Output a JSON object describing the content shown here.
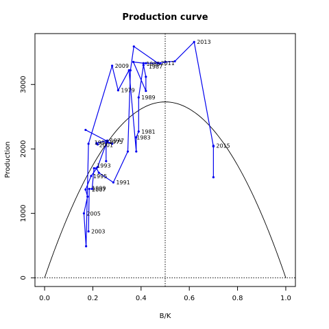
{
  "chart_data": {
    "type": "line",
    "title": "Production curve",
    "xlabel": "B/K",
    "ylabel": "Production",
    "xlim": [
      -0.04,
      1.04
    ],
    "ylim": [
      -135,
      3790
    ],
    "xticks": [
      0.0,
      0.2,
      0.4,
      0.6,
      0.8,
      1.0
    ],
    "xtick_labels": [
      "0.0",
      "0.2",
      "0.4",
      "0.6",
      "0.8",
      "1.0"
    ],
    "yticks": [
      0,
      1000,
      2000,
      3000
    ],
    "ytick_labels": [
      "0",
      "1000",
      "2000",
      "3000"
    ],
    "grid": false,
    "series_color": "#0000ee",
    "curve_color": "#000000",
    "series": [
      {
        "points": [
          [
            0.17,
            2295
          ],
          [
            0.28,
            2080
          ],
          [
            0.257,
            2100
          ],
          [
            0.22,
            1720
          ],
          [
            0.193,
            1580
          ],
          [
            0.17,
            1370
          ],
          [
            0.178,
            1260
          ],
          [
            0.163,
            1000
          ],
          [
            0.172,
            490
          ],
          [
            0.182,
            2080
          ],
          [
            0.28,
            3290
          ],
          [
            0.305,
            2910
          ],
          [
            0.35,
            3220
          ],
          [
            0.38,
            1960
          ],
          [
            0.38,
            2180
          ],
          [
            0.39,
            2270
          ],
          [
            0.39,
            2800
          ],
          [
            0.41,
            3300
          ],
          [
            0.42,
            3120
          ],
          [
            0.42,
            2900
          ],
          [
            0.368,
            3350
          ],
          [
            0.41,
            3330
          ],
          [
            0.42,
            3330
          ],
          [
            0.47,
            3330
          ],
          [
            0.48,
            3330
          ],
          [
            0.5,
            3350
          ],
          [
            0.54,
            3360
          ],
          [
            0.62,
            3660
          ],
          [
            0.7,
            2040
          ],
          [
            0.7,
            2050
          ]
        ]
      },
      {
        "points": [
          [
            0.182,
            720
          ],
          [
            0.185,
            1380
          ],
          [
            0.197,
            1380
          ],
          [
            0.205,
            1700
          ],
          [
            0.215,
            1700
          ],
          [
            0.225,
            1630
          ],
          [
            0.285,
            1480
          ],
          [
            0.345,
            1960
          ],
          [
            0.356,
            3220
          ],
          [
            0.37,
            3590
          ],
          [
            0.47,
            3330
          ]
        ]
      },
      {
        "points": [
          [
            0.255,
            1810
          ],
          [
            0.255,
            2100
          ],
          [
            0.26,
            2130
          ],
          [
            0.215,
            2090
          ],
          [
            0.22,
            2070
          ]
        ]
      },
      {
        "points": [
          [
            0.7,
            1560
          ],
          [
            0.7,
            2040
          ]
        ]
      }
    ],
    "point_labels": [
      {
        "text": "2013",
        "x": 0.62,
        "y": 3660
      },
      {
        "text": "1987",
        "x": 0.42,
        "y": 3280
      },
      {
        "text": "1985",
        "x": 0.41,
        "y": 3320
      },
      {
        "text": "2011",
        "x": 0.47,
        "y": 3330
      },
      {
        "text": "2009",
        "x": 0.28,
        "y": 3290
      },
      {
        "text": "1979",
        "x": 0.305,
        "y": 2910
      },
      {
        "text": "1989",
        "x": 0.39,
        "y": 2800
      },
      {
        "text": "1981",
        "x": 0.39,
        "y": 2270
      },
      {
        "text": "1983",
        "x": 0.37,
        "y": 2180
      },
      {
        "text": "1977",
        "x": 0.26,
        "y": 2130
      },
      {
        "text": "1975",
        "x": 0.255,
        "y": 2110
      },
      {
        "text": "1997",
        "x": 0.195,
        "y": 2100
      },
      {
        "text": "2001",
        "x": 0.215,
        "y": 2060
      },
      {
        "text": "2015",
        "x": 0.7,
        "y": 2050
      },
      {
        "text": "1993",
        "x": 0.205,
        "y": 1740
      },
      {
        "text": "1995",
        "x": 0.19,
        "y": 1580
      },
      {
        "text": "1991",
        "x": 0.285,
        "y": 1480
      },
      {
        "text": "1999",
        "x": 0.185,
        "y": 1390
      },
      {
        "text": "2007",
        "x": 0.185,
        "y": 1370
      },
      {
        "text": "2005",
        "x": 0.163,
        "y": 1000
      },
      {
        "text": "2003",
        "x": 0.182,
        "y": 720
      }
    ],
    "curve": {
      "type": "parabola",
      "peak_x": 0.5,
      "peak_y": 2730
    },
    "reference_lines": {
      "vertical_x": 0.5,
      "horizontal_y": 0
    }
  }
}
